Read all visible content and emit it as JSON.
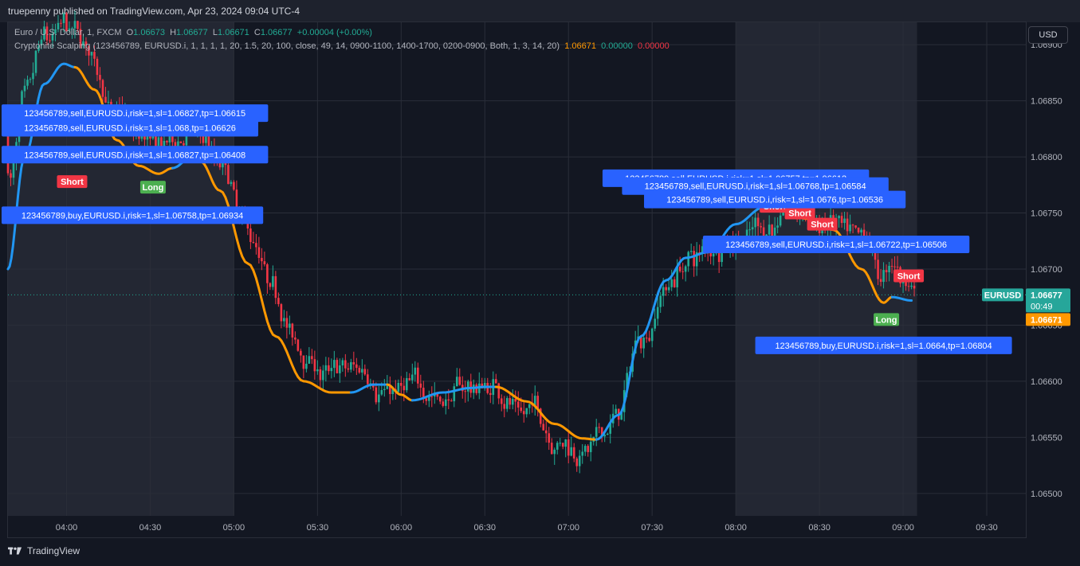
{
  "header": {
    "publisher_text": "truepenny published on TradingView.com, Apr 23, 2024 09:04 UTC-4"
  },
  "legend": {
    "symbol_line": "Euro / U.S. Dollar, 1, FXCM",
    "o_label": "O",
    "o_value": "1.06673",
    "h_label": "H",
    "h_value": "1.06677",
    "l_label": "L",
    "l_value": "1.06671",
    "c_label": "C",
    "c_value": "1.06677",
    "change": "+0.00004 (+0.00%)",
    "indicator_text": "Cryptonite Scalping (123456789, EURUSD.i, 1, 1, 1, 1, 20, 1.5, 20, 100, close, 49, 14, 0900-1100, 1400-1700, 0200-0900, Both, 1, 3, 14, 20)",
    "ind_v1": "1.06671",
    "ind_v2": "0.00000",
    "ind_v3": "0.00000"
  },
  "currency_button": "USD",
  "footer": {
    "brand": "TradingView"
  },
  "colors": {
    "up": "#22ab94",
    "down": "#f23645",
    "ma_blue": "#2196f3",
    "ma_orange": "#ff9800",
    "label_bg": "#2962ff",
    "session_bg": "#2a2e39"
  },
  "price_scale": {
    "last_symbol": "EURUSD",
    "last_price": "1.06677",
    "countdown": "00:49",
    "indicator_price": "1.06671"
  },
  "chart_data": {
    "type": "candlestick",
    "x_ticks": [
      "04:00",
      "04:30",
      "05:00",
      "05:30",
      "06:00",
      "06:30",
      "07:00",
      "07:30",
      "08:00",
      "08:30",
      "09:00",
      "09:30"
    ],
    "y_ticks": [
      "1.06500",
      "1.06550",
      "1.06600",
      "1.06650",
      "1.06700",
      "1.06750",
      "1.06800",
      "1.06850",
      "1.06900"
    ],
    "y_range": [
      1.0648,
      1.0692
    ],
    "x_range": [
      "03:39",
      "09:44"
    ],
    "session_shading": [
      [
        "03:39",
        "05:00"
      ],
      [
        "08:00",
        "09:05"
      ]
    ],
    "price_line": 1.06677,
    "ma_points": [
      [
        "03:39",
        1.067,
        "up"
      ],
      [
        "03:45",
        1.068,
        "up"
      ],
      [
        "03:52",
        1.06865,
        "up"
      ],
      [
        "03:59",
        1.06883,
        "up"
      ],
      [
        "04:03",
        1.0688,
        "dn"
      ],
      [
        "04:10",
        1.0686,
        "dn"
      ],
      [
        "04:18",
        1.06815,
        "dn"
      ],
      [
        "04:26",
        1.06792,
        "dn"
      ],
      [
        "04:33",
        1.06785,
        "dn"
      ],
      [
        "04:38",
        1.0679,
        "up"
      ],
      [
        "04:45",
        1.068,
        "up"
      ],
      [
        "04:48",
        1.06796,
        "dn"
      ],
      [
        "04:55",
        1.0677,
        "dn"
      ],
      [
        "05:05",
        1.06705,
        "dn"
      ],
      [
        "05:15",
        1.0664,
        "dn"
      ],
      [
        "05:25",
        1.066,
        "dn"
      ],
      [
        "05:35",
        1.0659,
        "dn"
      ],
      [
        "05:42",
        1.0659,
        "up"
      ],
      [
        "05:50",
        1.06597,
        "up"
      ],
      [
        "05:55",
        1.06597,
        "dn"
      ],
      [
        "06:00",
        1.06588,
        "dn"
      ],
      [
        "06:04",
        1.06583,
        "up"
      ],
      [
        "06:15",
        1.0659,
        "up"
      ],
      [
        "06:25",
        1.06594,
        "up"
      ],
      [
        "06:30",
        1.06595,
        "up"
      ],
      [
        "06:34",
        1.06595,
        "dn"
      ],
      [
        "06:45",
        1.06582,
        "dn"
      ],
      [
        "06:55",
        1.06562,
        "dn"
      ],
      [
        "07:05",
        1.06549,
        "dn"
      ],
      [
        "07:10",
        1.06548,
        "up"
      ],
      [
        "07:18",
        1.0657,
        "up"
      ],
      [
        "07:26",
        1.0664,
        "up"
      ],
      [
        "07:35",
        1.0669,
        "up"
      ],
      [
        "07:42",
        1.0671,
        "up"
      ],
      [
        "07:50",
        1.06715,
        "up"
      ],
      [
        "08:00",
        1.0674,
        "up"
      ],
      [
        "08:10",
        1.06755,
        "up"
      ],
      [
        "08:16",
        1.06752,
        "dn"
      ],
      [
        "08:25",
        1.06745,
        "dn"
      ],
      [
        "08:35",
        1.06735,
        "dn"
      ],
      [
        "08:45",
        1.067,
        "dn"
      ],
      [
        "08:53",
        1.0667,
        "dn"
      ],
      [
        "08:56",
        1.06675,
        "up"
      ],
      [
        "09:03",
        1.06672,
        "up"
      ]
    ],
    "signals": [
      {
        "text": "Short",
        "time": "04:02",
        "price": 1.06778,
        "kind": "short"
      },
      {
        "text": "Long",
        "time": "04:31",
        "price": 1.06773,
        "kind": "long"
      },
      {
        "text": "Short",
        "time": "04:41",
        "price": 1.06804,
        "kind": "short"
      },
      {
        "text": "Short",
        "time": "08:14",
        "price": 1.06756,
        "kind": "short"
      },
      {
        "text": "Short",
        "time": "08:23",
        "price": 1.0675,
        "kind": "short"
      },
      {
        "text": "Short",
        "time": "08:31",
        "price": 1.0674,
        "kind": "short"
      },
      {
        "text": "Short",
        "time": "09:02",
        "price": 1.06694,
        "kind": "short"
      },
      {
        "text": "Long",
        "time": "08:54",
        "price": 1.06655,
        "kind": "long"
      }
    ],
    "order_labels": [
      {
        "text": "123456789,sell,EURUSD.i,risk=1,sl=1.06827,tp=1.06615",
        "time": "04:14",
        "price": 1.06839
      },
      {
        "text": "123456789,sell,EURUSD.i,risk=1,sl=1.068,tp=1.06626",
        "time": "04:00",
        "price": 1.06826
      },
      {
        "text": "123456789,sell,EURUSD.i,risk=1,sl=1.06827,tp=1.06408",
        "time": "03:58",
        "price": 1.06802
      },
      {
        "text": "123456789,buy,EURUSD.i,risk=1,sl=1.06758,tp=1.06934",
        "time": "04:21",
        "price": 1.06748
      },
      {
        "text": "123456789,sell,EURUSD.i,risk=1,sl=1.06757,tp=1.06612",
        "time": "08:00",
        "price": 1.06781
      },
      {
        "text": "123456789,sell,EURUSD.i,risk=1,sl=1.06768,tp=1.06584",
        "time": "08:07",
        "price": 1.06774
      },
      {
        "text": "123456789,sell,EURUSD.i,risk=1,sl=1.0676,tp=1.06536",
        "time": "08:14",
        "price": 1.06762
      },
      {
        "text": "123456789,sell,EURUSD.i,risk=1,sl=1.06722,tp=1.06506",
        "time": "08:36",
        "price": 1.06722
      },
      {
        "text": "123456789,buy,EURUSD.i,risk=1,sl=1.0664,tp=1.06804",
        "time": "08:53",
        "price": 1.06632
      }
    ]
  }
}
